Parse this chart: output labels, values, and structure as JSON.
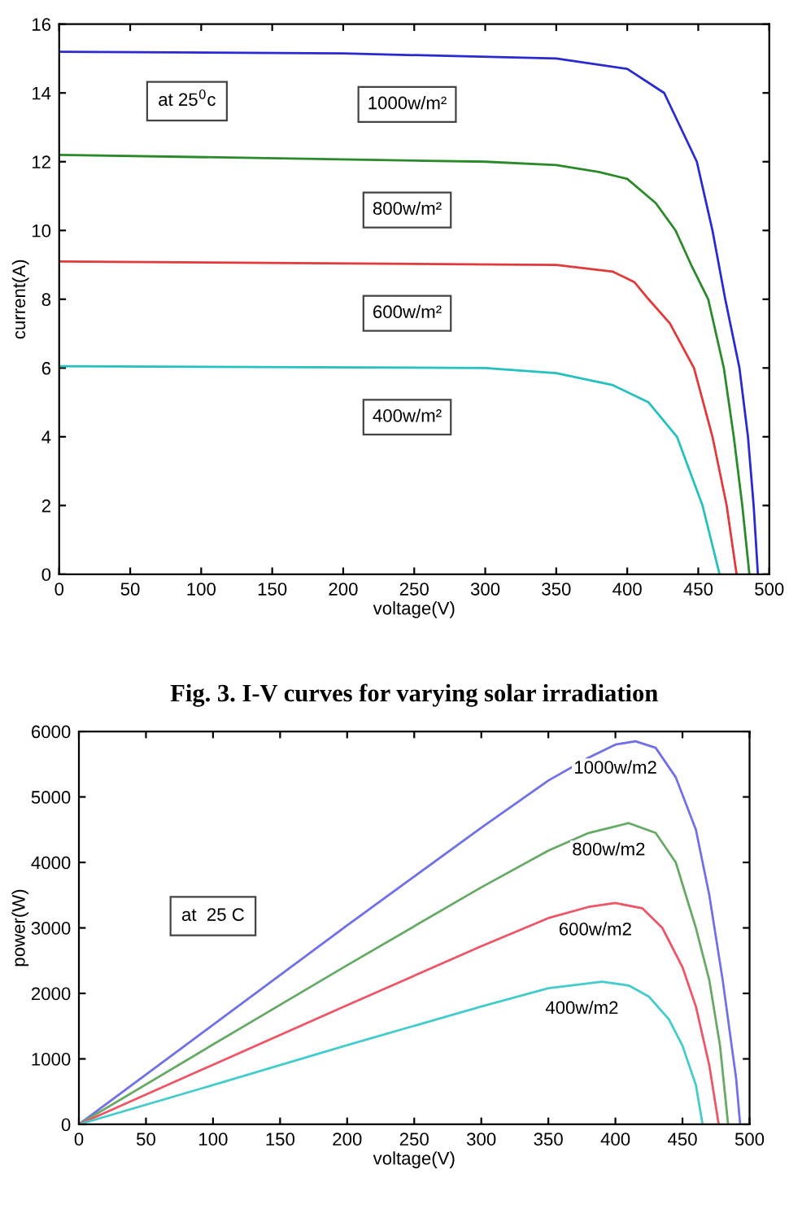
{
  "chart_data": [
    {
      "type": "line",
      "xlabel": "voltage(V)",
      "ylabel": "current(A)",
      "xlim": [
        0,
        500
      ],
      "ylim": [
        0,
        16
      ],
      "xticks": [
        0,
        50,
        100,
        150,
        200,
        250,
        300,
        350,
        400,
        450,
        500
      ],
      "yticks": [
        0,
        2,
        4,
        6,
        8,
        10,
        12,
        14,
        16
      ],
      "annotations": [
        "at 25$^{0}$c",
        "Fig. 3. I-V curves for varying solar irradiation"
      ],
      "series": [
        {
          "name": "1000w/m²",
          "color": "#2a2ad0",
          "x": [
            0,
            200,
            350,
            400,
            426,
            449,
            460,
            469,
            479,
            485,
            489,
            492
          ],
          "values": [
            15.2,
            15.15,
            15.0,
            14.7,
            14,
            12,
            10,
            8,
            6,
            4,
            2,
            0
          ]
        },
        {
          "name": "800w/m²",
          "color": "#2a8a2a",
          "x": [
            0,
            300,
            350,
            380,
            400,
            420,
            434,
            445,
            457,
            468,
            475,
            481,
            486
          ],
          "values": [
            12.2,
            12.0,
            11.9,
            11.7,
            11.5,
            10.8,
            10,
            9,
            8,
            6,
            4,
            2,
            0
          ]
        },
        {
          "name": "600w/m²",
          "color": "#e03a3a",
          "x": [
            0,
            350,
            390,
            405,
            415,
            430,
            447,
            460,
            470,
            477
          ],
          "values": [
            9.1,
            9.0,
            8.8,
            8.5,
            8,
            7.3,
            6,
            4,
            2,
            0
          ]
        },
        {
          "name": "400w/m²",
          "color": "#25c0c0",
          "x": [
            0,
            300,
            350,
            390,
            415,
            435,
            453,
            465
          ],
          "values": [
            6.05,
            6.0,
            5.85,
            5.5,
            5.0,
            4,
            2,
            0
          ]
        }
      ]
    },
    {
      "type": "line",
      "xlabel": "voltage(V)",
      "ylabel": "power(W)",
      "xlim": [
        0,
        500
      ],
      "ylim": [
        0,
        6000
      ],
      "xticks": [
        0,
        50,
        100,
        150,
        200,
        250,
        300,
        350,
        400,
        450,
        500
      ],
      "yticks": [
        0,
        1000,
        2000,
        3000,
        4000,
        5000,
        6000
      ],
      "annotations": [
        "at  25 C"
      ],
      "series": [
        {
          "name": "1000w/m2",
          "color": "#7070e8",
          "x": [
            0,
            100,
            200,
            300,
            350,
            380,
            400,
            415,
            430,
            445,
            460,
            470,
            480,
            490,
            493
          ],
          "values": [
            0,
            1520,
            3040,
            4530,
            5250,
            5600,
            5800,
            5850,
            5750,
            5300,
            4500,
            3500,
            2200,
            700,
            0
          ]
        },
        {
          "name": "800w/m2",
          "color": "#66aa66",
          "x": [
            0,
            100,
            200,
            300,
            350,
            380,
            410,
            430,
            445,
            460,
            470,
            478,
            484
          ],
          "values": [
            0,
            1220,
            2430,
            3620,
            4180,
            4450,
            4600,
            4450,
            4000,
            3000,
            2200,
            1200,
            0
          ]
        },
        {
          "name": "600w/m2",
          "color": "#ee5566",
          "x": [
            0,
            100,
            200,
            300,
            350,
            380,
            400,
            420,
            435,
            450,
            460,
            470,
            477
          ],
          "values": [
            0,
            910,
            1820,
            2720,
            3150,
            3320,
            3380,
            3300,
            3000,
            2400,
            1800,
            900,
            0
          ]
        },
        {
          "name": "400w/m2",
          "color": "#44cccc",
          "x": [
            0,
            100,
            200,
            300,
            350,
            390,
            410,
            425,
            440,
            450,
            460,
            465
          ],
          "values": [
            0,
            600,
            1210,
            1800,
            2080,
            2180,
            2120,
            1950,
            1600,
            1200,
            600,
            0
          ]
        }
      ]
    }
  ]
}
